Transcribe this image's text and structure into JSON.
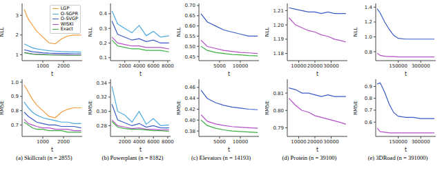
{
  "chart_data": [
    {
      "type": "line",
      "y_label": "NLL",
      "x_label": "t",
      "legend": "upper right",
      "grid": false,
      "x": [
        100,
        300,
        500,
        700,
        1000,
        1300,
        1600,
        1900,
        2200,
        2500,
        2855
      ],
      "xlim": [
        0,
        2900
      ],
      "xticks": [
        1000,
        2000
      ],
      "ylim": [
        0.7,
        3.6
      ],
      "yticks": [
        1,
        2,
        3
      ],
      "series": [
        {
          "name": "LGP",
          "color": "#f39c3c",
          "values": [
            3.3,
            2.8,
            2.5,
            2.2,
            1.9,
            1.6,
            1.55,
            1.8,
            1.95,
            2.0,
            2.0
          ]
        },
        {
          "name": "O-SGPR",
          "color": "#4aa8e0",
          "values": [
            1.55,
            1.45,
            1.35,
            1.3,
            1.25,
            1.2,
            1.18,
            1.16,
            1.15,
            1.14,
            1.13
          ]
        },
        {
          "name": "O-SVGP",
          "color": "#3a5bc7",
          "values": [
            1.25,
            1.2,
            1.15,
            1.13,
            1.1,
            1.08,
            1.07,
            1.06,
            1.06,
            1.05,
            1.05
          ]
        },
        {
          "name": "WISKI",
          "color": "#b44fc8",
          "values": [
            1.12,
            1.08,
            1.05,
            1.03,
            1.02,
            1.0,
            1.0,
            0.99,
            0.99,
            0.98,
            0.98
          ]
        },
        {
          "name": "Exact",
          "color": "#3cb043",
          "values": [
            1.1,
            1.06,
            1.03,
            1.01,
            1.0,
            0.99,
            0.98,
            0.98,
            0.97,
            0.97,
            0.97
          ]
        }
      ]
    },
    {
      "type": "line",
      "y_label": "NLL",
      "x_label": "t",
      "grid": false,
      "x": [
        200,
        1000,
        2000,
        3000,
        4000,
        5000,
        6000,
        7000,
        8182
      ],
      "xlim": [
        0,
        8400
      ],
      "xticks": [
        2000,
        4000,
        6000,
        8000
      ],
      "ylim": [
        0.08,
        0.47
      ],
      "yticks": [
        0.1,
        0.2,
        0.3,
        0.4
      ],
      "series": [
        {
          "name": "O-SGPR",
          "color": "#4aa8e0",
          "values": [
            0.42,
            0.33,
            0.3,
            0.27,
            0.32,
            0.25,
            0.28,
            0.24,
            0.25
          ]
        },
        {
          "name": "O-SVGP",
          "color": "#3a5bc7",
          "values": [
            0.35,
            0.26,
            0.24,
            0.22,
            0.23,
            0.21,
            0.22,
            0.2,
            0.2
          ]
        },
        {
          "name": "WISKI",
          "color": "#b44fc8",
          "values": [
            0.24,
            0.2,
            0.19,
            0.18,
            0.18,
            0.17,
            0.17,
            0.17,
            0.16
          ]
        },
        {
          "name": "Exact",
          "color": "#3cb043",
          "values": [
            0.22,
            0.18,
            0.17,
            0.16,
            0.16,
            0.15,
            0.15,
            0.15,
            0.14
          ]
        }
      ]
    },
    {
      "type": "line",
      "y_label": "NLL",
      "x_label": "t",
      "grid": false,
      "x": [
        500,
        2000,
        4000,
        6000,
        8000,
        10000,
        12000,
        14193
      ],
      "xlim": [
        0,
        14500
      ],
      "xticks": [
        5000,
        10000
      ],
      "ylim": [
        0.43,
        0.71
      ],
      "yticks": [
        0.45,
        {
          "value": 0.5,
          "label": "0.50"
        },
        0.55,
        {
          "value": 0.6,
          "label": "0.60"
        },
        0.65,
        {
          "value": 0.7,
          "label": "0.70"
        }
      ],
      "series": [
        {
          "name": "O-SVGP",
          "color": "#3a5bc7",
          "values": [
            0.66,
            0.62,
            0.6,
            0.58,
            0.57,
            0.56,
            0.55,
            0.55
          ]
        },
        {
          "name": "WISKI",
          "color": "#b44fc8",
          "values": [
            0.53,
            0.5,
            0.49,
            0.48,
            0.475,
            0.47,
            0.468,
            0.465
          ]
        },
        {
          "name": "Exact",
          "color": "#3cb043",
          "values": [
            0.5,
            0.48,
            0.47,
            0.465,
            0.46,
            0.458,
            0.455,
            0.453
          ]
        }
      ]
    },
    {
      "type": "line",
      "y_label": "NLL",
      "x_label": "t",
      "grid": false,
      "x": [
        4000,
        8000,
        12000,
        16000,
        20000,
        24000,
        28000,
        32000,
        36000,
        39100
      ],
      "xlim": [
        3000,
        40000
      ],
      "xticks": [
        10000,
        20000,
        30000
      ],
      "ylim": [
        1.175,
        1.215
      ],
      "yticks": [
        1.18,
        1.19,
        {
          "value": 1.2,
          "label": "1.20"
        },
        1.21
      ],
      "series": [
        {
          "name": "O-SVGP",
          "color": "#3a5bc7",
          "values": [
            1.212,
            1.211,
            1.21,
            1.209,
            1.209,
            1.208,
            1.209,
            1.208,
            1.208,
            1.208
          ]
        },
        {
          "name": "WISKI",
          "color": "#b44fc8",
          "values": [
            1.205,
            1.2,
            1.198,
            1.196,
            1.195,
            1.193,
            1.192,
            1.19,
            1.189,
            1.188
          ]
        }
      ]
    },
    {
      "type": "line",
      "y_label": "NLL",
      "x_label": "t",
      "grid": false,
      "x": [
        10000,
        30000,
        60000,
        90000,
        120000,
        150000,
        200000,
        250000,
        300000,
        350000,
        391000
      ],
      "xlim": [
        0,
        400000
      ],
      "xticks": [
        150000,
        300000
      ],
      "ylim": [
        0.68,
        1.45
      ],
      "yticks": [
        0.8,
        {
          "value": 1,
          "label": "1.0"
        },
        1.2,
        1.4
      ],
      "series": [
        {
          "name": "O-SVGP",
          "color": "#3a5bc7",
          "values": [
            1.38,
            1.32,
            1.2,
            1.1,
            1.02,
            0.98,
            0.97,
            0.97,
            0.97,
            0.97,
            0.97
          ]
        },
        {
          "name": "WISKI",
          "color": "#b44fc8",
          "values": [
            0.78,
            0.75,
            0.74,
            0.735,
            0.735,
            0.73,
            0.73,
            0.73,
            0.73,
            0.73,
            0.73
          ]
        }
      ]
    },
    {
      "type": "line",
      "y_label": "RMSE",
      "x_label": "t",
      "grid": false,
      "caption": "(a) Skillcraft (n = 2855)",
      "x": [
        100,
        300,
        500,
        700,
        1000,
        1300,
        1600,
        1900,
        2200,
        2500,
        2855
      ],
      "xlim": [
        0,
        2900
      ],
      "xticks": [
        1000,
        2000
      ],
      "ylim": [
        0.62,
        1.02
      ],
      "yticks": [
        0.7,
        0.8,
        0.9,
        {
          "value": 1,
          "label": "1.0"
        }
      ],
      "series": [
        {
          "name": "LGP",
          "color": "#f39c3c",
          "values": [
            0.98,
            0.93,
            0.88,
            0.84,
            0.8,
            0.76,
            0.75,
            0.79,
            0.81,
            0.82,
            0.82
          ]
        },
        {
          "name": "O-SGPR",
          "color": "#4aa8e0",
          "values": [
            0.86,
            0.82,
            0.79,
            0.77,
            0.75,
            0.74,
            0.73,
            0.72,
            0.72,
            0.71,
            0.71
          ]
        },
        {
          "name": "O-SVGP",
          "color": "#3a5bc7",
          "values": [
            0.79,
            0.76,
            0.74,
            0.72,
            0.71,
            0.7,
            0.7,
            0.69,
            0.69,
            0.69,
            0.68
          ]
        },
        {
          "name": "WISKI",
          "color": "#b44fc8",
          "values": [
            0.74,
            0.71,
            0.7,
            0.69,
            0.68,
            0.68,
            0.67,
            0.67,
            0.67,
            0.66,
            0.66
          ]
        },
        {
          "name": "Exact",
          "color": "#3cb043",
          "values": [
            0.72,
            0.7,
            0.68,
            0.67,
            0.67,
            0.66,
            0.66,
            0.66,
            0.65,
            0.65,
            0.65
          ]
        }
      ]
    },
    {
      "type": "line",
      "y_label": "RMSE",
      "x_label": "t",
      "grid": false,
      "caption": "(b) Powerplant (n = 8182)",
      "x": [
        200,
        1000,
        2000,
        3000,
        4000,
        5000,
        6000,
        7000,
        8182
      ],
      "xlim": [
        0,
        8400
      ],
      "xticks": [
        2000,
        4000,
        6000,
        8000
      ],
      "ylim": [
        0.265,
        0.345
      ],
      "yticks": [
        0.28,
        {
          "value": 0.3,
          "label": "0.30"
        },
        0.32,
        0.34
      ],
      "series": [
        {
          "name": "O-SGPR",
          "color": "#4aa8e0",
          "values": [
            0.335,
            0.3,
            0.295,
            0.285,
            0.3,
            0.282,
            0.29,
            0.28,
            0.281
          ]
        },
        {
          "name": "O-SVGP",
          "color": "#3a5bc7",
          "values": [
            0.31,
            0.288,
            0.284,
            0.28,
            0.283,
            0.278,
            0.28,
            0.277,
            0.277
          ]
        },
        {
          "name": "WISKI",
          "color": "#b44fc8",
          "values": [
            0.288,
            0.28,
            0.278,
            0.276,
            0.277,
            0.275,
            0.275,
            0.274,
            0.274
          ]
        },
        {
          "name": "Exact",
          "color": "#3cb043",
          "values": [
            0.286,
            0.278,
            0.276,
            0.275,
            0.275,
            0.274,
            0.273,
            0.273,
            0.272
          ]
        }
      ]
    },
    {
      "type": "line",
      "y_label": "RMSE",
      "x_label": "t",
      "grid": false,
      "caption": "(c) Elevators (n = 14193)",
      "x": [
        500,
        2000,
        4000,
        6000,
        8000,
        10000,
        12000,
        14193
      ],
      "xlim": [
        0,
        14500
      ],
      "xticks": [
        5000,
        10000
      ],
      "ylim": [
        0.37,
        0.475
      ],
      "yticks": [
        0.38,
        {
          "value": 0.4,
          "label": "0.40"
        },
        0.42,
        0.44,
        0.46
      ],
      "series": [
        {
          "name": "O-SVGP",
          "color": "#3a5bc7",
          "values": [
            0.455,
            0.44,
            0.432,
            0.427,
            0.424,
            0.422,
            0.42,
            0.419
          ]
        },
        {
          "name": "WISKI",
          "color": "#b44fc8",
          "values": [
            0.41,
            0.398,
            0.393,
            0.39,
            0.388,
            0.387,
            0.386,
            0.385
          ]
        },
        {
          "name": "Exact",
          "color": "#3cb043",
          "values": [
            0.4,
            0.39,
            0.385,
            0.382,
            0.38,
            0.379,
            0.378,
            0.377
          ]
        }
      ]
    },
    {
      "type": "line",
      "y_label": "RMSE",
      "x_label": "t",
      "grid": false,
      "caption": "(d) Protein (n = 39100)",
      "x": [
        4000,
        8000,
        12000,
        16000,
        20000,
        24000,
        28000,
        32000,
        36000,
        39100
      ],
      "xlim": [
        3000,
        40000
      ],
      "xticks": [
        10000,
        20000,
        30000
      ],
      "ylim": [
        0.785,
        0.818
      ],
      "yticks": [
        0.79,
        {
          "value": 0.8,
          "label": "0.80"
        },
        0.81
      ],
      "series": [
        {
          "name": "O-SVGP",
          "color": "#3a5bc7",
          "values": [
            0.813,
            0.812,
            0.81,
            0.81,
            0.809,
            0.808,
            0.809,
            0.808,
            0.808,
            0.808
          ]
        },
        {
          "name": "WISKI",
          "color": "#b44fc8",
          "values": [
            0.807,
            0.803,
            0.8,
            0.799,
            0.797,
            0.796,
            0.795,
            0.794,
            0.793,
            0.792
          ]
        }
      ]
    },
    {
      "type": "line",
      "y_label": "RMSE",
      "x_label": "t",
      "grid": false,
      "caption": "(e) 3DRoad (n = 391000)",
      "x": [
        10000,
        30000,
        60000,
        90000,
        120000,
        150000,
        200000,
        250000,
        300000,
        350000,
        391000
      ],
      "xlim": [
        0,
        400000
      ],
      "xticks": [
        150000,
        300000
      ],
      "ylim": [
        0.48,
        0.96
      ],
      "yticks": [
        0.6,
        0.7,
        0.8,
        0.9
      ],
      "series": [
        {
          "name": "O-SVGP",
          "color": "#3a5bc7",
          "values": [
            0.92,
            0.93,
            0.85,
            0.75,
            0.68,
            0.65,
            0.64,
            0.64,
            0.63,
            0.63,
            0.63
          ]
        },
        {
          "name": "WISKI",
          "color": "#b44fc8",
          "values": [
            0.55,
            0.52,
            0.515,
            0.51,
            0.51,
            0.51,
            0.51,
            0.51,
            0.51,
            0.51,
            0.51
          ]
        }
      ]
    }
  ]
}
